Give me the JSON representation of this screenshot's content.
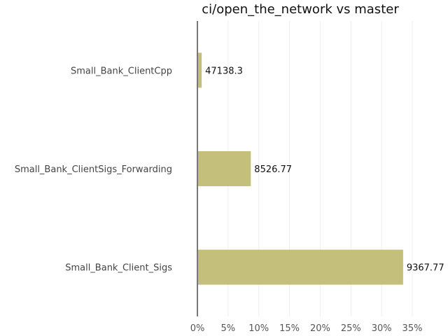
{
  "chart_data": {
    "type": "bar",
    "orientation": "horizontal",
    "title": "ci/open_the_network vs master",
    "categories": [
      "Small_Bank_ClientCpp",
      "Small_Bank_ClientSigs_Forwarding",
      "Small_Bank_Client_Sigs"
    ],
    "values": [
      0.7,
      8.7,
      33.5
    ],
    "value_unit": "%",
    "data_labels": [
      "47138.3",
      "8526.77",
      "9367.77"
    ],
    "xlim": [
      0,
      35
    ],
    "x_ticks": [
      0,
      5,
      10,
      15,
      20,
      25,
      30,
      35
    ],
    "x_tick_labels": [
      "0%",
      "5%",
      "10%",
      "15%",
      "20%",
      "25%",
      "30%",
      "35%"
    ],
    "grid": "vertical",
    "bar_color": "#c4bf7a"
  }
}
